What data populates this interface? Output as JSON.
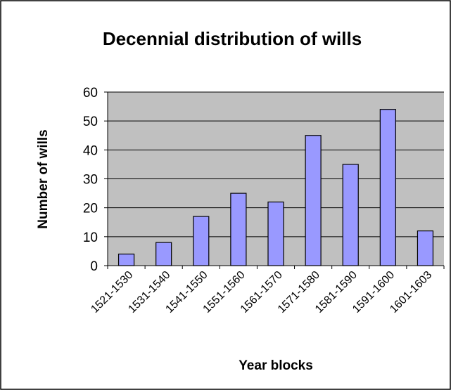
{
  "chart_data": {
    "type": "bar",
    "title": "Decennial distribution of wills",
    "x_label": "Year blocks",
    "y_label": "Number of wills",
    "categories": [
      "1521-1530",
      "1531-1540",
      "1541-1550",
      "1551-1560",
      "1561-1570",
      "1571-1580",
      "1581-1590",
      "1591-1600",
      "1601-1603"
    ],
    "values": [
      4,
      8,
      17,
      25,
      22,
      45,
      35,
      54,
      12
    ],
    "color": "#9999ff",
    "ylim": [
      0,
      60
    ],
    "yticks": [
      0,
      10,
      20,
      30,
      40,
      50,
      60
    ],
    "grid": true
  }
}
